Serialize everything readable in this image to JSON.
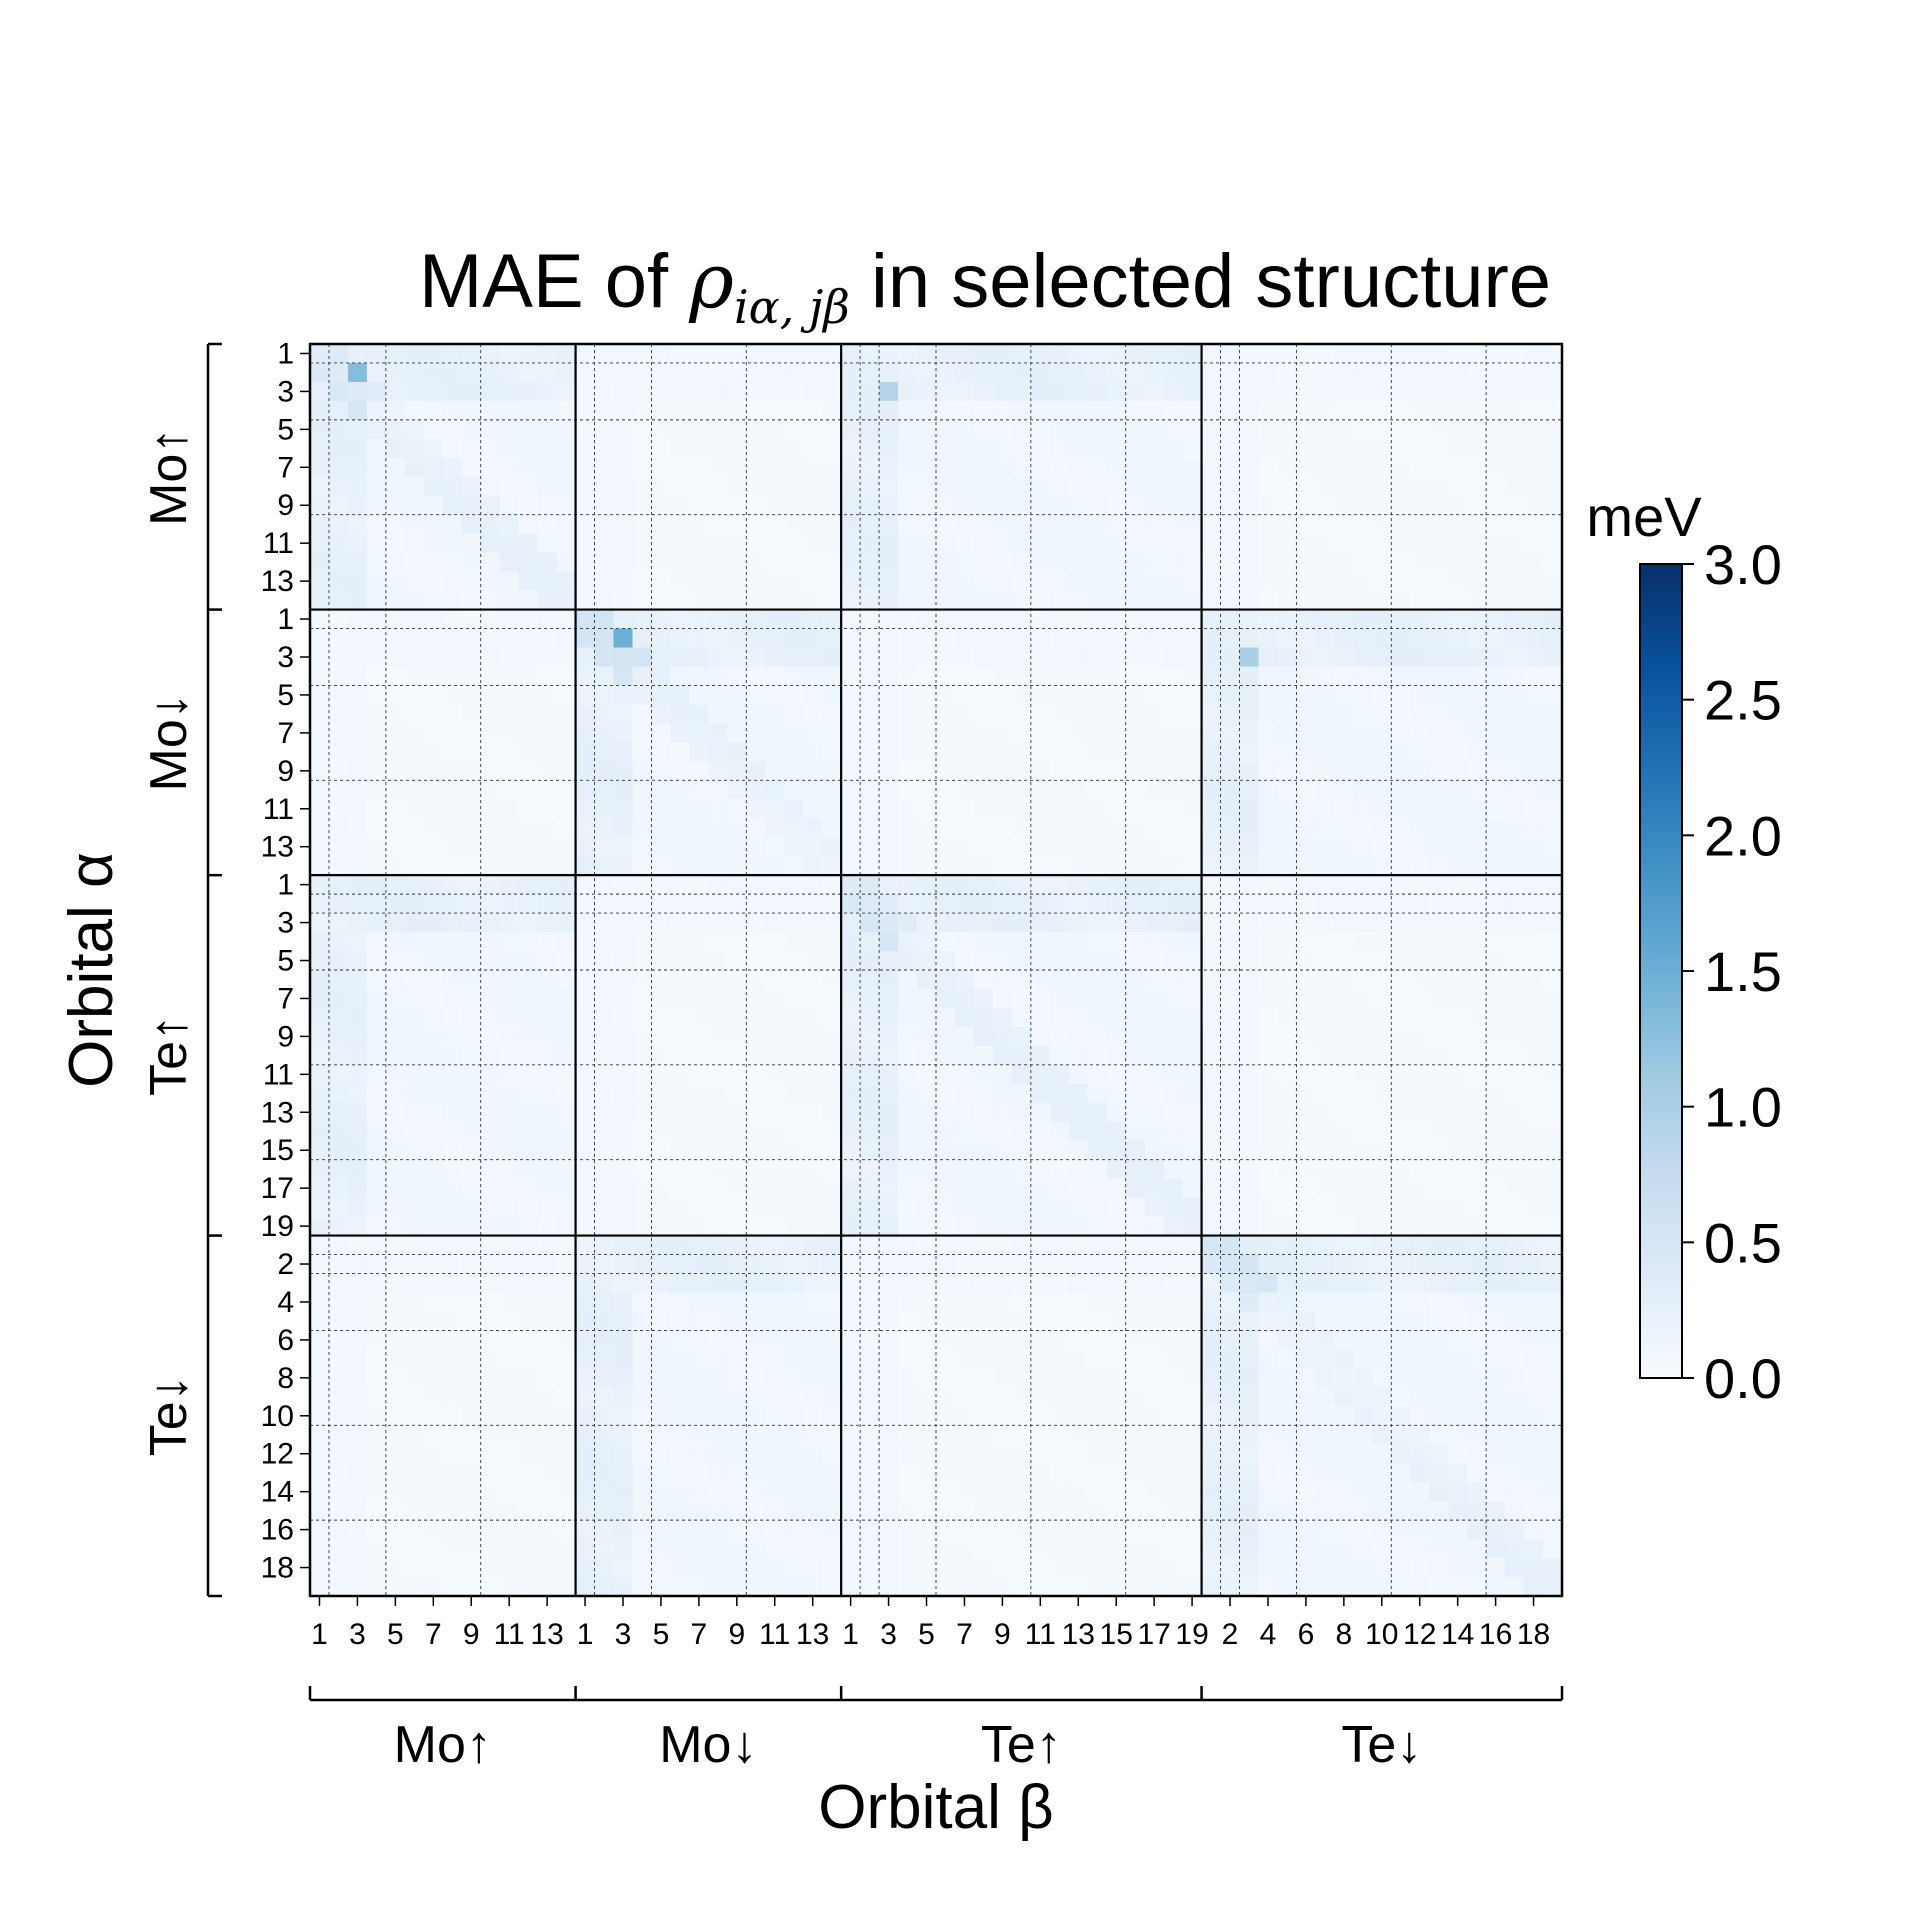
{
  "title": {
    "prefix": "MAE of ",
    "symbol": "ρ",
    "subscript": "iα, jβ",
    "suffix": " in selected structure"
  },
  "chart_data": {
    "type": "heatmap",
    "xlabel": "Orbital β",
    "ylabel": "Orbital α",
    "colorbar": {
      "label": "meV",
      "range": [
        0.0,
        3.0
      ],
      "ticks": [
        "0.0",
        "0.5",
        "1.0",
        "1.5",
        "2.0",
        "2.5",
        "3.0"
      ],
      "colormap": "Blues"
    },
    "groups": [
      {
        "label": "Mo↑",
        "size": 14,
        "subgroups": [
          1,
          3,
          5,
          5
        ]
      },
      {
        "label": "Mo↓",
        "size": 14,
        "subgroups": [
          1,
          3,
          5,
          5
        ]
      },
      {
        "label": "Te↑",
        "size": 19,
        "subgroups": [
          1,
          1,
          3,
          5,
          5,
          4
        ]
      },
      {
        "label": "Te↓",
        "size": 19,
        "subgroups": [
          1,
          1,
          3,
          5,
          5,
          4
        ]
      }
    ],
    "x_ticks": [
      {
        "group": 0,
        "labels": [
          "1",
          "3",
          "5",
          "7",
          "9",
          "11",
          "13"
        ]
      },
      {
        "group": 1,
        "labels": [
          "1",
          "3",
          "5",
          "7",
          "9",
          "11",
          "13"
        ]
      },
      {
        "group": 2,
        "labels": [
          "1",
          "3",
          "5",
          "7",
          "9",
          "11",
          "13",
          "15",
          "17",
          "19"
        ]
      },
      {
        "group": 3,
        "labels": [
          "2",
          "4",
          "6",
          "8",
          "10",
          "12",
          "14",
          "16",
          "18"
        ]
      }
    ],
    "y_ticks": [
      {
        "group": 0,
        "labels": [
          "1",
          "3",
          "5",
          "7",
          "9",
          "11",
          "13"
        ]
      },
      {
        "group": 1,
        "labels": [
          "1",
          "3",
          "5",
          "7",
          "9",
          "11",
          "13"
        ]
      },
      {
        "group": 2,
        "labels": [
          "1",
          "3",
          "5",
          "7",
          "9",
          "11",
          "13",
          "15",
          "17",
          "19"
        ]
      },
      {
        "group": 3,
        "labels": [
          "2",
          "4",
          "6",
          "8",
          "10",
          "12",
          "14",
          "16",
          "18"
        ]
      }
    ],
    "value_range": [
      0.0,
      3.0
    ],
    "max_value_approx": 1.5,
    "typical_value_approx": 0.1,
    "highlights": [
      {
        "row_group": "Mo↑",
        "row": 2,
        "col_group": "Mo↑",
        "col": 3,
        "value": 1.3
      },
      {
        "row_group": "Mo↓",
        "row": 2,
        "col_group": "Mo↓",
        "col": 3,
        "value": 1.5
      },
      {
        "row_group": "Mo↑",
        "row": 3,
        "col_group": "Te↑",
        "col": 3,
        "value": 0.9
      },
      {
        "row_group": "Mo↓",
        "row": 3,
        "col_group": "Te↓",
        "col": 3,
        "value": 1.0
      }
    ]
  }
}
